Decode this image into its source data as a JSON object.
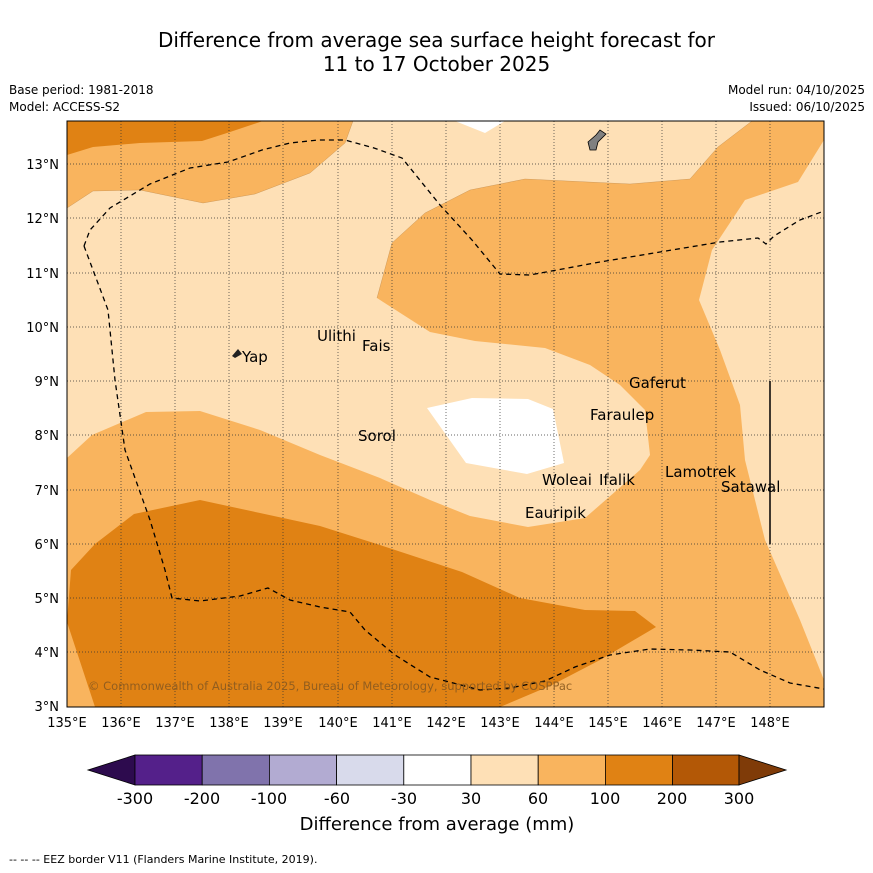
{
  "title": {
    "line1": "Difference from average sea surface height forecast for",
    "line2": "11 to 17 October 2025"
  },
  "meta": {
    "base_period": "Base period: 1981-2018",
    "model": "Model: ACCESS-S2",
    "model_run": "Model run: 04/10/2025",
    "issued": "Issued: 06/10/2025"
  },
  "map": {
    "lon_ticks": [
      "135°E",
      "136°E",
      "137°E",
      "138°E",
      "139°E",
      "140°E",
      "141°E",
      "142°E",
      "143°E",
      "144°E",
      "145°E",
      "146°E",
      "147°E",
      "148°E"
    ],
    "lat_ticks": [
      "3°N",
      "4°N",
      "5°N",
      "6°N",
      "7°N",
      "8°N",
      "9°N",
      "10°N",
      "11°N",
      "12°N",
      "13°N"
    ],
    "places": {
      "yap": "Yap",
      "ulithi": "Ulithi",
      "fais": "Fais",
      "sorol": "Sorol",
      "gaferut": "Gaferut",
      "faraulep": "Faraulep",
      "woleai": "Woleai",
      "ifalik": "Ifalik",
      "lamotrek": "Lamotrek",
      "satawal": "Satawal",
      "eauripik": "Eauripik"
    },
    "copyright": "© Commonwealth of Australia 2025, Bureau of Meteorology, supported by COSPPac"
  },
  "colorbar": {
    "ticks": [
      "-300",
      "-200",
      "-100",
      "-60",
      "-30",
      "30",
      "60",
      "100",
      "200",
      "300"
    ],
    "colors": [
      "#2d0b4e",
      "#54208a",
      "#8073ac",
      "#b2abd2",
      "#d8daeb",
      "#ffffff",
      "#fee0b6",
      "#f9b45e",
      "#e08214",
      "#b35806",
      "#7f3b08"
    ],
    "label": "Difference from average (mm)"
  },
  "footer": "--  --  -- EEZ border V11 (Flanders Marine Institute, 2019)."
}
